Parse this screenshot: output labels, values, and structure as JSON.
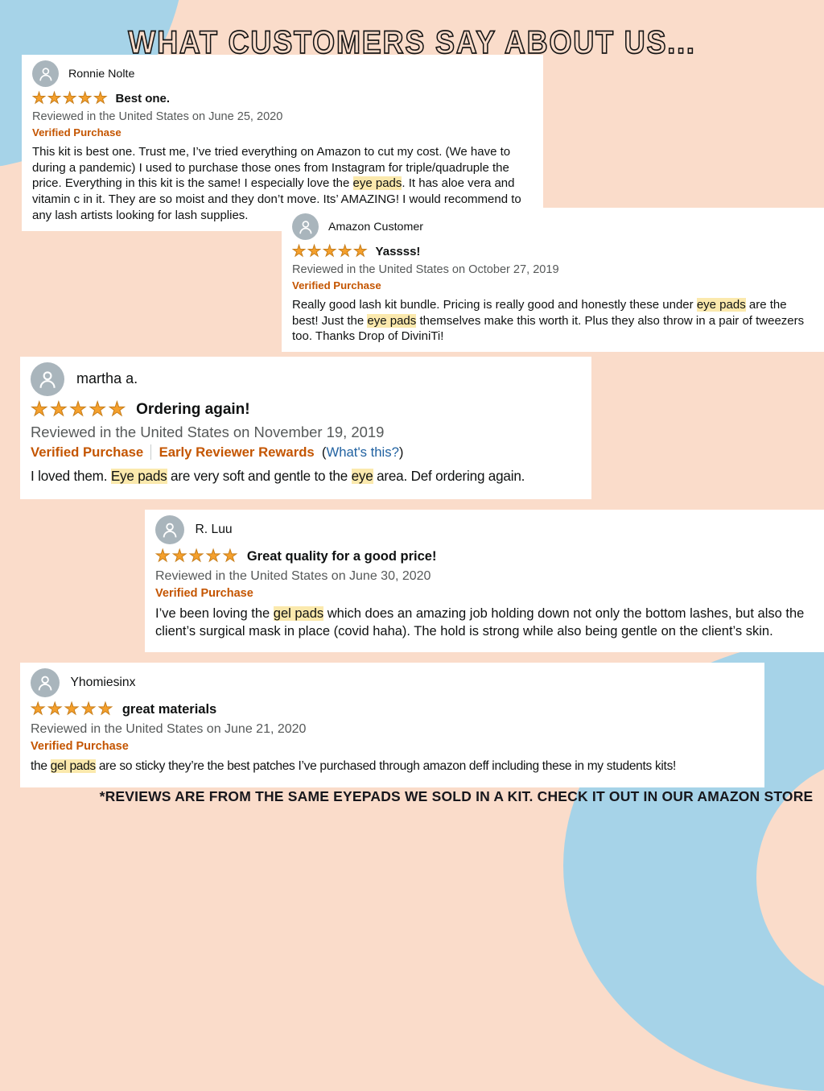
{
  "page": {
    "title": "WHAT CUSTOMERS SAY ABOUT US...",
    "footnote": "*REVIEWS ARE FROM THE SAME EYEPADS WE SOLD IN A KIT. CHECK IT OUT IN OUR AMAZON STORE",
    "colors": {
      "background": "#fadcca",
      "accent_blue": "#a6d3e8",
      "card_white": "#ffffff",
      "star_fill": "#f5a02c",
      "star_stroke": "#c87e1a",
      "verified_orange": "#c45500",
      "link_blue": "#2162a1",
      "highlight_yellow": "#fbe9ad",
      "text_dark": "#0f1111",
      "text_gray": "#565959",
      "avatar_gray": "#a9b5bc"
    }
  },
  "reviews": [
    {
      "name": "Ronnie Nolte",
      "rating": 5,
      "stars": "★★★★★",
      "headline": "Best one.",
      "date_line": "Reviewed in the United States on June 25, 2020",
      "verified_label": "Verified Purchase",
      "body": [
        {
          "t": "This kit is best one. Trust me, I’ve tried everything on Amazon to cut my cost. (We have to during a pandemic) I used to purchase those ones from Instagram for triple/quadruple the price. Everything in this kit is the same! I especially love the "
        },
        {
          "t": "eye pads",
          "hl": true
        },
        {
          "t": ". It has aloe vera and vitamin c in it. They are so moist and they don’t move. Its’ AMAZING! I would recommend to any lash artists looking for lash supplies."
        }
      ]
    },
    {
      "name": "Amazon Customer",
      "rating": 5,
      "stars": "★★★★★",
      "headline": "Yassss!",
      "date_line": "Reviewed in the United States on October 27, 2019",
      "verified_label": "Verified Purchase",
      "body": [
        {
          "t": "Really good lash kit bundle. Pricing is really good and honestly these under "
        },
        {
          "t": "eye pads",
          "hl": true
        },
        {
          "t": " are the best! Just the "
        },
        {
          "t": "eye pads",
          "hl": true
        },
        {
          "t": " themselves make this worth it. Plus they also throw in a pair of tweezers too. Thanks Drop of DiviniTi!"
        }
      ]
    },
    {
      "name": "martha a.",
      "rating": 5,
      "stars": "★★★★★",
      "headline": "Ordering again!",
      "date_line": "Reviewed in the United States on November 19, 2019",
      "verified_label": "Verified Purchase",
      "early_reviewer_label": "Early Reviewer Rewards",
      "whats_this_open": "(",
      "whats_this_label": "What's this?",
      "whats_this_close": ")",
      "body": [
        {
          "t": "I loved them. "
        },
        {
          "t": "Eye pads",
          "hl": true
        },
        {
          "t": " are very soft and gentle to the "
        },
        {
          "t": "eye",
          "hl": true
        },
        {
          "t": " area. Def ordering again."
        }
      ]
    },
    {
      "name": "R. Luu",
      "rating": 5,
      "stars": "★★★★★",
      "headline": "Great quality for a good price!",
      "date_line": "Reviewed in the United States on June 30, 2020",
      "verified_label": "Verified Purchase",
      "body": [
        {
          "t": "I’ve been loving the "
        },
        {
          "t": "gel pads",
          "hl": true
        },
        {
          "t": " which does an amazing job holding down not only the bottom lashes, but also the client’s surgical mask in place (covid haha). The hold is strong while also being gentle on the client’s skin."
        }
      ]
    },
    {
      "name": "Yhomiesinx",
      "rating": 5,
      "stars": "★★★★★",
      "headline": "great materials",
      "date_line": "Reviewed in the United States on June 21, 2020",
      "verified_label": "Verified Purchase",
      "body": [
        {
          "t": "the "
        },
        {
          "t": "gel pads",
          "hl": true
        },
        {
          "t": " are so sticky they’re the best patches I’ve purchased through amazon deff including these in my students kits!"
        }
      ]
    }
  ]
}
